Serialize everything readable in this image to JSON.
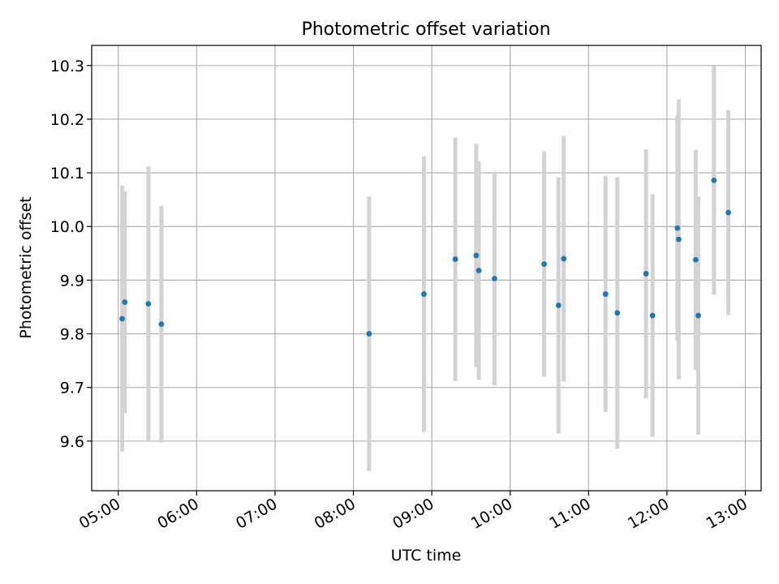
{
  "chart_data": {
    "type": "scatter",
    "title": "Photometric offset variation",
    "xlabel": "UTC time",
    "ylabel": "Photometric offset",
    "x_format": "HH:MM",
    "xlim": [
      "04:39:40",
      "13:12:07"
    ],
    "ylim": [
      9.5075,
      10.3375
    ],
    "xticks": [
      "05:00",
      "06:00",
      "07:00",
      "08:00",
      "09:00",
      "10:00",
      "11:00",
      "12:00",
      "13:00"
    ],
    "yticks": [
      9.6,
      9.7,
      9.8,
      9.9,
      10.0,
      10.1,
      10.2,
      10.3
    ],
    "grid": true,
    "colors": {
      "points": "#1f77b4",
      "errorbars": "#d3d3d3",
      "grid": "#b0b0b0"
    },
    "points": [
      {
        "t": "05:03:00",
        "y": 9.828,
        "err": 0.248
      },
      {
        "t": "05:05:00",
        "y": 9.859,
        "err": 0.207
      },
      {
        "t": "05:23:00",
        "y": 9.856,
        "err": 0.256
      },
      {
        "t": "05:33:00",
        "y": 9.818,
        "err": 0.221
      },
      {
        "t": "08:12:00",
        "y": 9.8,
        "err": 0.256
      },
      {
        "t": "08:54:00",
        "y": 9.874,
        "err": 0.257
      },
      {
        "t": "09:18:00",
        "y": 9.939,
        "err": 0.227
      },
      {
        "t": "09:34:00",
        "y": 9.946,
        "err": 0.208
      },
      {
        "t": "09:36:00",
        "y": 9.918,
        "err": 0.204
      },
      {
        "t": "09:48:00",
        "y": 9.903,
        "err": 0.199
      },
      {
        "t": "10:26:00",
        "y": 9.93,
        "err": 0.21
      },
      {
        "t": "10:37:00",
        "y": 9.853,
        "err": 0.239
      },
      {
        "t": "10:41:00",
        "y": 9.94,
        "err": 0.229
      },
      {
        "t": "11:13:00",
        "y": 9.874,
        "err": 0.22
      },
      {
        "t": "11:22:00",
        "y": 9.839,
        "err": 0.253
      },
      {
        "t": "11:44:00",
        "y": 9.912,
        "err": 0.232
      },
      {
        "t": "11:49:00",
        "y": 9.834,
        "err": 0.226
      },
      {
        "t": "12:08:00",
        "y": 9.997,
        "err": 0.21
      },
      {
        "t": "12:09:00",
        "y": 9.976,
        "err": 0.261
      },
      {
        "t": "12:22:00",
        "y": 9.938,
        "err": 0.205
      },
      {
        "t": "12:24:00",
        "y": 9.834,
        "err": 0.222
      },
      {
        "t": "12:36:00",
        "y": 10.086,
        "err": 0.213
      },
      {
        "t": "12:47:00",
        "y": 10.026,
        "err": 0.191
      }
    ]
  }
}
